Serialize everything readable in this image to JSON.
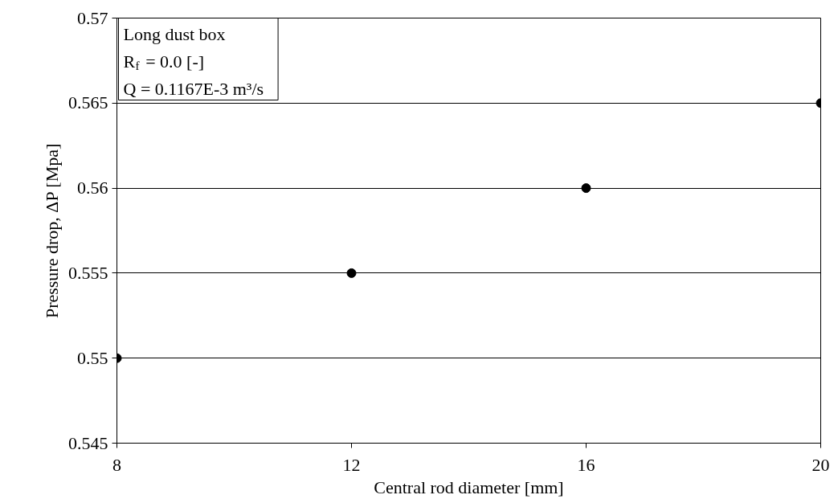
{
  "chart_data": {
    "type": "scatter",
    "xlabel": "Central rod diameter [mm]",
    "ylabel": "Pressure drop, ΔP [Mpa]",
    "x": [
      8,
      12,
      16,
      20
    ],
    "series": [
      {
        "color": "#000000",
        "values": [
          0.55,
          0.555,
          0.56,
          0.565
        ]
      }
    ],
    "xlim": [
      8,
      20
    ],
    "xticks": [
      8,
      12,
      16,
      20
    ],
    "ylim": [
      0.545,
      0.57
    ],
    "yticks": [
      0.545,
      0.55,
      0.555,
      0.56,
      0.565,
      0.57
    ],
    "grid": "y",
    "marker": "circle",
    "annotations": [
      "Long dust box",
      "R$_{f}$ = 0.0 [-]",
      "Q = 0.1167E-3 m³/s"
    ]
  }
}
